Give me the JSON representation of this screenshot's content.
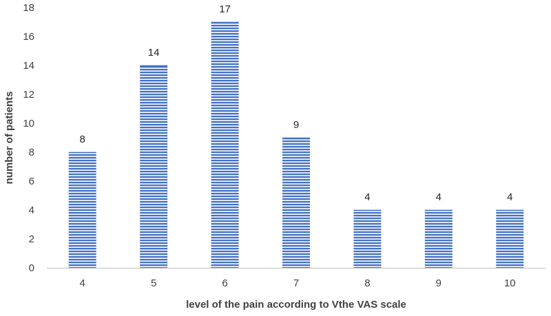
{
  "chart_data": {
    "type": "bar",
    "title": "",
    "xlabel": "level of the pain according to Vthe VAS scale",
    "ylabel": "number of patients",
    "categories": [
      "4",
      "5",
      "6",
      "7",
      "8",
      "9",
      "10"
    ],
    "values": [
      8,
      14,
      17,
      9,
      4,
      4,
      4
    ],
    "data_labels": [
      "8",
      "14",
      "17",
      "9",
      "4",
      "4",
      "4"
    ],
    "ylim": [
      0,
      18
    ],
    "yticks": [
      0,
      2,
      4,
      6,
      8,
      10,
      12,
      14,
      16,
      18
    ],
    "grid": false,
    "legend": "none",
    "bar_color": "#4472c4",
    "bar_pattern": "horizontal-stripes"
  }
}
